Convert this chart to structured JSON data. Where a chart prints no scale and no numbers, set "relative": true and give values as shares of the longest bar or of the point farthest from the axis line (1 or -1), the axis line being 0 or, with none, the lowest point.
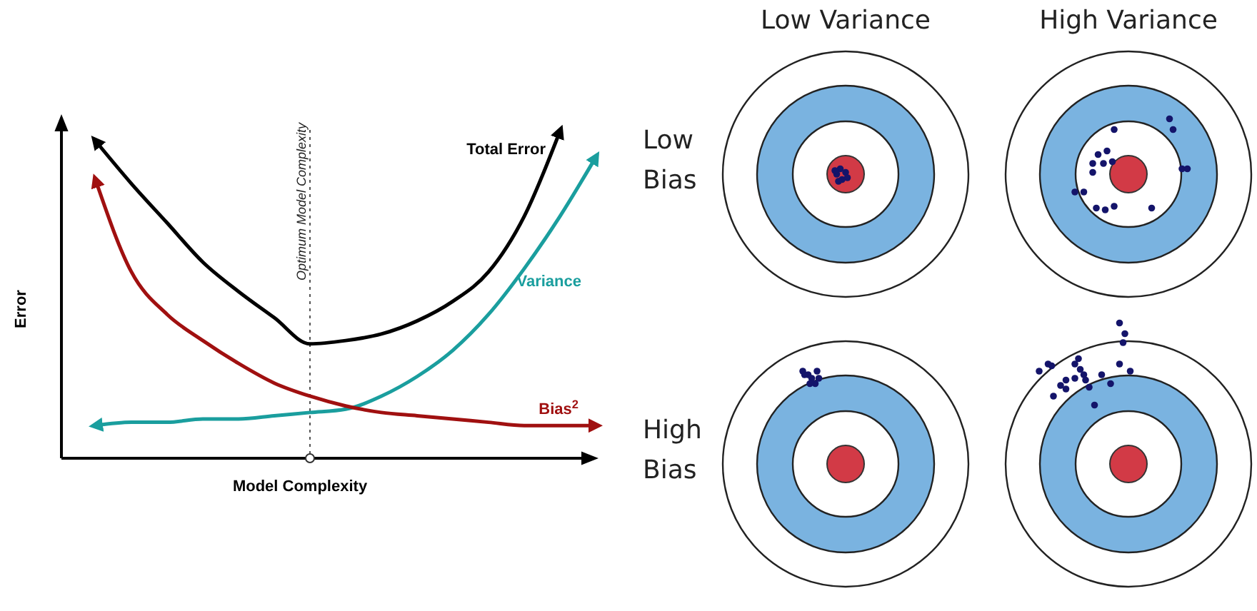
{
  "chart_data": [
    {
      "type": "line",
      "relative": true,
      "xlabel": "Model Complexity",
      "ylabel": "Error",
      "categories": [
        null,
        null,
        null,
        null,
        null,
        null,
        null,
        null,
        null,
        null,
        null,
        null,
        null,
        null,
        null
      ],
      "series": [
        {
          "name": "Total Error",
          "color": "#000000",
          "values": [
            0.97,
            0.84,
            0.72,
            0.6,
            0.51,
            0.43,
            0.35,
            0.36,
            0.38,
            0.42,
            0.48,
            0.57,
            0.74,
            1.0,
            null
          ]
        },
        {
          "name": "Variance",
          "color": "#1a9e9e",
          "values": [
            0.1,
            0.11,
            0.11,
            0.12,
            0.12,
            0.13,
            0.14,
            0.15,
            0.19,
            0.25,
            0.33,
            0.44,
            0.58,
            0.74,
            0.92
          ]
        },
        {
          "name": "Bias$^{2}$",
          "color": "#a01010",
          "values": [
            0.85,
            0.57,
            0.44,
            0.36,
            0.29,
            0.23,
            0.19,
            0.16,
            0.14,
            0.13,
            0.12,
            0.11,
            0.1,
            0.1,
            0.1
          ]
        }
      ],
      "annotations": [
        "Optimum Model Complexity"
      ]
    },
    {
      "type": "other",
      "annotations": [
        "Low Variance",
        "High Variance",
        "Low Bias",
        "High Bias"
      ]
    }
  ]
}
